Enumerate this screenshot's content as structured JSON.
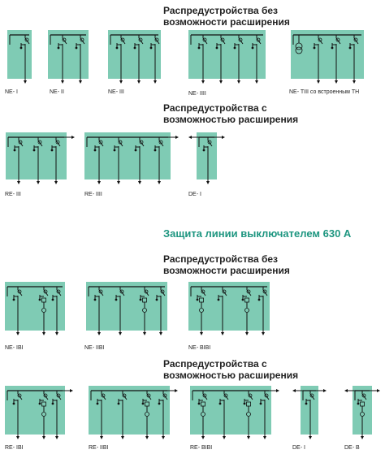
{
  "colors": {
    "panel": "#7fcbb4",
    "line": "#111111",
    "accent": "#1e9680"
  },
  "section1": {
    "heading_line1": "Распредустройства без",
    "heading_line2": "возможности расширения",
    "labels": [
      "NE- I",
      "NE- II",
      "NE- III",
      "NE- IIII",
      "NE- TIII со встроенным ТН"
    ]
  },
  "section2": {
    "heading_line1": "Распредустройства с",
    "heading_line2": "возможностью расширения",
    "labels": [
      "RE- III",
      "RE- IIII",
      "DE- I"
    ]
  },
  "green_title": "Защита линии выключателем 630 А",
  "section3": {
    "heading_line1": "Распредустройства без",
    "heading_line2": "возможности расширения",
    "labels": [
      "NE- IBI",
      "NE- IIBI",
      "NE- BIBI"
    ]
  },
  "section4": {
    "heading_line1": "Распредустройства с",
    "heading_line2": "возможностью расширения",
    "labels": [
      "RE- IBI",
      "RE- IIBI",
      "RE- BIBI",
      "DE- I",
      "DE- B"
    ]
  }
}
